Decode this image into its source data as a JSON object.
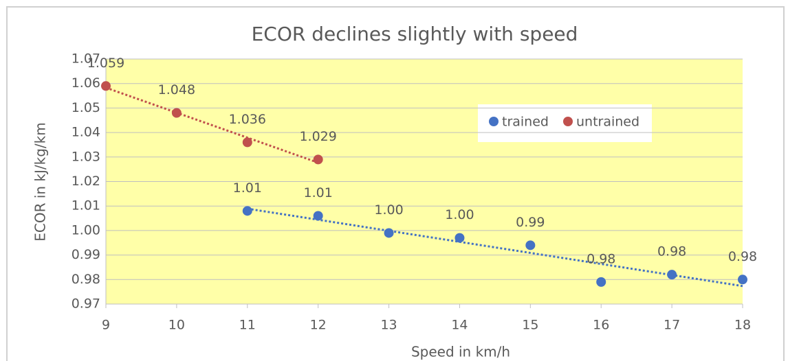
{
  "chart_data": {
    "type": "scatter",
    "title": "ECOR declines slightly with speed",
    "x_label": "Speed in km/h",
    "y_label": "ECOR in kJ/kg/km",
    "xlim": [
      9,
      18
    ],
    "xticks": [
      9,
      10,
      11,
      12,
      13,
      14,
      15,
      16,
      17,
      18
    ],
    "ylim": [
      0.97,
      1.07
    ],
    "yticks": [
      0.97,
      0.98,
      0.99,
      {
        "value": 1,
        "label": "1.00"
      },
      1.01,
      1.02,
      1.03,
      1.04,
      1.05,
      1.06,
      1.07
    ],
    "grid": true,
    "trendline": "linear",
    "legend": "upper right",
    "series": [
      {
        "name": "trained",
        "color": "#4472c4",
        "x": [
          11,
          12,
          13,
          14,
          15,
          16,
          17,
          18
        ],
        "values": [
          1.008,
          1.006,
          0.999,
          0.997,
          0.994,
          0.979,
          0.982,
          0.98
        ],
        "value_labels": [
          "1.01",
          "1.01",
          "1.00",
          "1.00",
          "0.99",
          "0.98",
          "0.98",
          "0.98"
        ]
      },
      {
        "name": "untrained",
        "color": "#c0504d",
        "x": [
          9,
          10,
          11,
          12
        ],
        "values": [
          1.059,
          1.048,
          1.036,
          1.029
        ]
      }
    ]
  }
}
